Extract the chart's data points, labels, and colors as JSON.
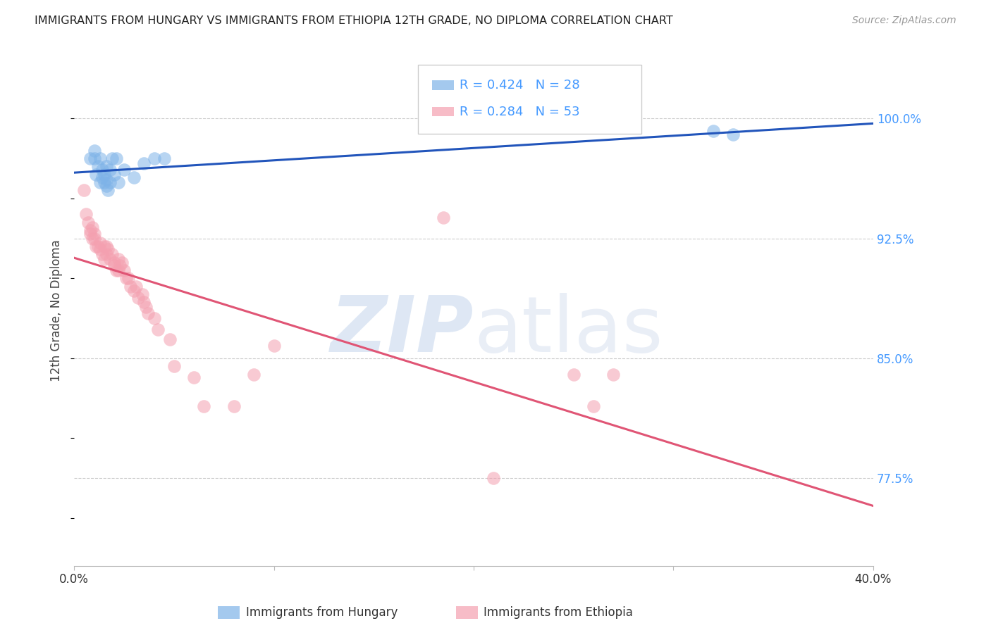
{
  "title": "IMMIGRANTS FROM HUNGARY VS IMMIGRANTS FROM ETHIOPIA 12TH GRADE, NO DIPLOMA CORRELATION CHART",
  "source": "Source: ZipAtlas.com",
  "ylabel_label": "12th Grade, No Diploma",
  "ytick_labels": [
    "100.0%",
    "92.5%",
    "85.0%",
    "77.5%"
  ],
  "ytick_values": [
    1.0,
    0.925,
    0.85,
    0.775
  ],
  "xlim": [
    0.0,
    0.4
  ],
  "ylim": [
    0.72,
    1.04
  ],
  "legend1_r": "0.424",
  "legend1_n": "28",
  "legend2_r": "0.284",
  "legend2_n": "53",
  "color_hungary": "#7EB3E8",
  "color_ethiopia": "#F4A0B0",
  "color_hungary_line": "#2255BB",
  "color_ethiopia_line": "#E05575",
  "color_yticks": "#4499FF",
  "hungary_x": [
    0.008,
    0.01,
    0.01,
    0.011,
    0.012,
    0.013,
    0.013,
    0.014,
    0.014,
    0.015,
    0.015,
    0.016,
    0.016,
    0.016,
    0.017,
    0.018,
    0.018,
    0.019,
    0.02,
    0.021,
    0.022,
    0.025,
    0.03,
    0.035,
    0.04,
    0.045,
    0.32,
    0.33
  ],
  "hungary_y": [
    0.975,
    0.975,
    0.98,
    0.965,
    0.97,
    0.96,
    0.975,
    0.963,
    0.968,
    0.96,
    0.965,
    0.958,
    0.962,
    0.97,
    0.955,
    0.968,
    0.96,
    0.975,
    0.965,
    0.975,
    0.96,
    0.968,
    0.963,
    0.972,
    0.975,
    0.975,
    0.992,
    0.99
  ],
  "ethiopia_x": [
    0.005,
    0.006,
    0.007,
    0.008,
    0.008,
    0.009,
    0.009,
    0.01,
    0.01,
    0.011,
    0.012,
    0.013,
    0.013,
    0.014,
    0.015,
    0.015,
    0.016,
    0.016,
    0.017,
    0.018,
    0.019,
    0.02,
    0.02,
    0.021,
    0.022,
    0.022,
    0.023,
    0.024,
    0.025,
    0.026,
    0.027,
    0.028,
    0.03,
    0.031,
    0.032,
    0.034,
    0.035,
    0.036,
    0.037,
    0.04,
    0.042,
    0.048,
    0.05,
    0.06,
    0.065,
    0.08,
    0.09,
    0.1,
    0.185,
    0.21,
    0.25,
    0.26,
    0.27
  ],
  "ethiopia_y": [
    0.955,
    0.94,
    0.935,
    0.93,
    0.928,
    0.932,
    0.925,
    0.928,
    0.925,
    0.92,
    0.92,
    0.918,
    0.922,
    0.915,
    0.92,
    0.912,
    0.915,
    0.92,
    0.918,
    0.912,
    0.915,
    0.91,
    0.908,
    0.905,
    0.912,
    0.905,
    0.908,
    0.91,
    0.905,
    0.9,
    0.9,
    0.895,
    0.892,
    0.895,
    0.888,
    0.89,
    0.885,
    0.882,
    0.878,
    0.875,
    0.868,
    0.862,
    0.845,
    0.838,
    0.82,
    0.82,
    0.84,
    0.858,
    0.938,
    0.775,
    0.84,
    0.82,
    0.84
  ]
}
